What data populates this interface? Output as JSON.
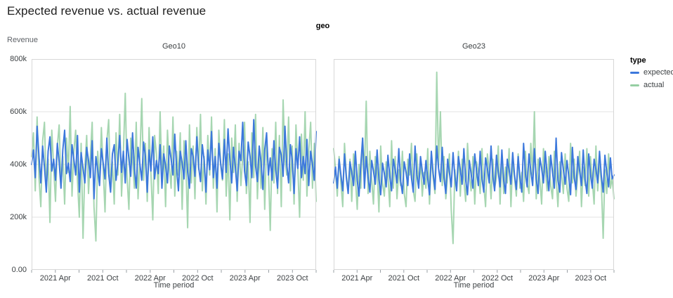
{
  "title": "Expected revenue vs. actual revenue",
  "facet_field_label": "geo",
  "legend": {
    "title": "type",
    "items": [
      {
        "label": "expected",
        "color": "#3c78dc"
      },
      {
        "label": "actual",
        "color": "#96cfa3"
      }
    ]
  },
  "axes": {
    "y_title": "Revenue",
    "x_title": "Time period",
    "y_ticks": [
      {
        "v": 0,
        "label": "0.00"
      },
      {
        "v": 200,
        "label": "200k"
      },
      {
        "v": 400,
        "label": "400k"
      },
      {
        "v": 600,
        "label": "600k"
      },
      {
        "v": 800,
        "label": "800k"
      }
    ],
    "x_ticks": [
      {
        "m": 0,
        "label": ""
      },
      {
        "m": 3,
        "label": "2021 Apr"
      },
      {
        "m": 6,
        "label": ""
      },
      {
        "m": 9,
        "label": "2021 Oct"
      },
      {
        "m": 12,
        "label": ""
      },
      {
        "m": 15,
        "label": "2022 Apr"
      },
      {
        "m": 18,
        "label": ""
      },
      {
        "m": 21,
        "label": "2022 Oct"
      },
      {
        "m": 24,
        "label": ""
      },
      {
        "m": 27,
        "label": "2023 Apr"
      },
      {
        "m": 30,
        "label": ""
      },
      {
        "m": 33,
        "label": "2023 Oct"
      },
      {
        "m": 36,
        "label": ""
      }
    ],
    "x_total_months": 36
  },
  "chart_data": {
    "type": "line",
    "x_domain": [
      "2021 Jan",
      "2023 Dec"
    ],
    "x_unit": "week",
    "ylim": [
      0,
      800000
    ],
    "values_scale": 1000,
    "grid": "horizontal",
    "legend_position": "right",
    "facets": [
      {
        "title": "Geo10",
        "series": [
          {
            "name": "expected",
            "color": "#3c78dc",
            "values": [
              400,
              455,
              350,
              545,
              430,
              330,
              470,
              390,
              295,
              450,
              505,
              375,
              420,
              340,
              480,
              410,
              310,
              455,
              530,
              365,
              405,
              335,
              475,
              420,
              360,
              510,
              295,
              445,
              385,
              330,
              465,
              415,
              350,
              490,
              270,
              430,
              380,
              320,
              460,
              405,
              345,
              500,
              365,
              295,
              440,
              475,
              340,
              410,
              510,
              370,
              450,
              330,
              495,
              420,
              355,
              520,
              385,
              310,
              465,
              400,
              340,
              485,
              430,
              295,
              455,
              375,
              505,
              345,
              415,
              365,
              475,
              310,
              440,
              395,
              330,
              470,
              420,
              360,
              515,
              385,
              300,
              450,
              405,
              345,
              490,
              370,
              310,
              460,
              430,
              355,
              505,
              390,
              335,
              475,
              415,
              295,
              455,
              380,
              525,
              350,
              430,
              310,
              480,
              405,
              345,
              495,
              370,
              535,
              420,
              330,
              465,
              390,
              300,
              450,
              415,
              560,
              375,
              320,
              485,
              430,
              350,
              570,
              395,
              335,
              470,
              410,
              305,
              455,
              520,
              360,
              425,
              340,
              490,
              380,
              310,
              465,
              435,
              355,
              545,
              400,
              330,
              475,
              415,
              290,
              460,
              385,
              505,
              350,
              430,
              365,
              495,
              320,
              450,
              400,
              340,
              525
            ]
          },
          {
            "name": "actual",
            "color": "#96cfa3",
            "values": [
              430,
              520,
              300,
              580,
              350,
              240,
              490,
              560,
              310,
              420,
              180,
              530,
              390,
              260,
              470,
              550,
              320,
              430,
              250,
              500,
              370,
              620,
              280,
              450,
              530,
              340,
              200,
              480,
              120,
              390,
              510,
              290,
              430,
              560,
              240,
              110,
              450,
              330,
              540,
              380,
              220,
              490,
              570,
              300,
              410,
              250,
              520,
              360,
              590,
              280,
              440,
              670,
              350,
              230,
              500,
              420,
              310,
              560,
              270,
              430,
              650,
              340,
              480,
              260,
              540,
              370,
              190,
              510,
              440,
              290,
              600,
              350,
              470,
              240,
              530,
              390,
              310,
              580,
              280,
              450,
              360,
              520,
              230,
              490,
              410,
              160,
              550,
              330,
              470,
              270,
              540,
              380,
              590,
              300,
              430,
              250,
              510,
              360,
              580,
              310,
              460,
              220,
              530,
              400,
              340,
              570,
              280,
              440,
              190,
              500,
              370,
              550,
              260,
              480,
              320,
              430,
              560,
              290,
              410,
              180,
              520,
              350,
              590,
              270,
              450,
              310,
              540,
              230,
              490,
              380,
              150,
              460,
              330,
              560,
              290,
              510,
              240,
              645,
              420,
              360,
              580,
              300,
              470,
              250,
              550,
              390,
              200,
              515,
              340,
              600,
              280,
              450,
              560,
              310,
              480,
              260
            ]
          }
        ]
      },
      {
        "title": "Geo23",
        "series": [
          {
            "name": "expected",
            "color": "#3c78dc",
            "values": [
              330,
              390,
              310,
              420,
              360,
              300,
              440,
              350,
              290,
              410,
              370,
              320,
              450,
              340,
              280,
              400,
              500,
              310,
              430,
              350,
              295,
              415,
              375,
              325,
              455,
              345,
              285,
              405,
              365,
              315,
              435,
              355,
              300,
              420,
              380,
              330,
              460,
              340,
              290,
              410,
              370,
              320,
              440,
              350,
              295,
              470,
              360,
              310,
              430,
              375,
              325,
              415,
              345,
              285,
              450,
              365,
              305,
              470,
              385,
              335,
              465,
              350,
              290,
              420,
              370,
              315,
              445,
              355,
              300,
              430,
              380,
              325,
              460,
              340,
              285,
              415,
              365,
              310,
              440,
              375,
              320,
              450,
              345,
              295,
              425,
              385,
              330,
              470,
              355,
              300,
              435,
              370,
              315,
              455,
              340,
              290,
              420,
              380,
              325,
              445,
              360,
              305,
              430,
              350,
              295,
              480,
              365,
              315,
              440,
              375,
              320,
              460,
              345,
              290,
              425,
              385,
              330,
              450,
              360,
              300,
              435,
              370,
              310,
              500,
              340,
              295,
              445,
              380,
              325,
              415,
              355,
              285,
              465,
              350,
              305,
              430,
              375,
              320,
              455,
              345,
              290,
              440,
              365,
              310,
              420,
              380,
              330,
              450,
              355,
              295,
              435,
              370,
              315,
              425,
              345,
              360
            ]
          },
          {
            "name": "actual",
            "color": "#96cfa3",
            "values": [
              460,
              380,
              280,
              430,
              330,
              240,
              480,
              360,
              300,
              420,
              260,
              440,
              350,
              230,
              400,
              310,
              500,
              370,
              640,
              290,
              450,
              340,
              250,
              430,
              380,
              220,
              470,
              330,
              280,
              410,
              360,
              240,
              490,
              310,
              430,
              270,
              380,
              320,
              450,
              290,
              240,
              420,
              360,
              480,
              300,
              260,
              440,
              330,
              410,
              280,
              370,
              310,
              460,
              250,
              430,
              350,
              290,
              750,
              390,
              600,
              320,
              430,
              270,
              360,
              440,
              230,
              100,
              380,
              310,
              450,
              280,
              420,
              340,
              260,
              480,
              360,
              300,
              430,
              250,
              410,
              370,
              290,
              460,
              320,
              240,
              440,
              380,
              270,
              420,
              310,
              350,
              470,
              250,
              430,
              290,
              390,
              330,
              460,
              240,
              410,
              350,
              280,
              440,
              310,
              370,
              260,
              450,
              330,
              290,
              480,
              360,
              600,
              270,
              420,
              340,
              250,
              460,
              380,
              300,
              430,
              320,
              270,
              450,
              350,
              240,
              410,
              370,
              290,
              440,
              310,
              260,
              480,
              330,
              420,
              280,
              360,
              450,
              240,
              390,
              320,
              460,
              280,
              430,
              340,
              250,
              470,
              300,
              410,
              330,
              120,
              380,
              290,
              440,
              310,
              350,
              270
            ]
          }
        ]
      }
    ]
  },
  "style": {
    "grid_color": "#e3e3e3",
    "border_color": "#d7d7d7",
    "tick_color": "#9aa0a6"
  }
}
